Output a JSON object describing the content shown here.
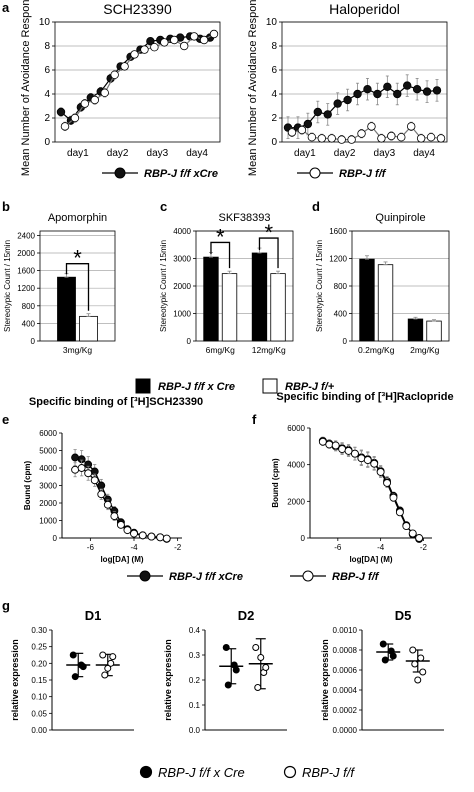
{
  "panel_letters": {
    "a": "a",
    "b": "b",
    "c": "c",
    "d": "d",
    "e": "e",
    "f": "f",
    "g": "g"
  },
  "legends": {
    "ab": [
      {
        "label": "RBP-J f/f xCre",
        "fill": "#111111"
      },
      {
        "label": "RBP-J f/f",
        "fill": "#ffffff"
      }
    ],
    "bcd": [
      {
        "label": "RBP-J f/f x Cre",
        "fill": "#000000"
      },
      {
        "label": "RBP-J f/+",
        "fill": "#ffffff"
      }
    ],
    "ef": [
      {
        "label": "RBP-J f/f xCre",
        "fill": "#111111"
      },
      {
        "label": "RBP-J f/f",
        "fill": "#ffffff"
      }
    ],
    "g": [
      {
        "label": "RBP-J f/f x Cre",
        "fill": "#000000"
      },
      {
        "label": "RBP-J f/f",
        "fill": "#ffffff"
      }
    ]
  },
  "chart_data": [
    {
      "id": "a1",
      "type": "line",
      "title": "SCH23390",
      "xlabel": "",
      "ylabel": "Mean Number of Avoidance Response",
      "ylim": [
        0,
        10
      ],
      "yticks": [
        0,
        2,
        4,
        6,
        8,
        10
      ],
      "x_tick_labels": [
        "day1",
        "day2",
        "day3",
        "day4"
      ],
      "grid": true,
      "x_index": [
        1,
        2,
        3,
        4,
        5,
        6,
        7,
        8,
        9,
        10,
        11,
        12,
        13,
        14,
        15,
        16
      ],
      "series": [
        {
          "name": "RBP-J f/f xCre",
          "marker": "filled",
          "values": [
            2.5,
            1.8,
            2.9,
            3.7,
            4.2,
            5.3,
            6.3,
            7.1,
            7.7,
            8.4,
            8.5,
            8.6,
            8.7,
            8.8,
            8.6,
            8.7
          ]
        },
        {
          "name": "RBP-J f/f",
          "marker": "open",
          "values": [
            1.3,
            2.0,
            3.2,
            3.5,
            4.1,
            5.6,
            6.3,
            7.3,
            7.7,
            7.9,
            8.3,
            8.5,
            8.0,
            8.8,
            8.5,
            9.0
          ]
        }
      ]
    },
    {
      "id": "a2",
      "type": "line",
      "title": "Haloperidol",
      "xlabel": "",
      "ylabel": "Mean Number of Avoidance Response",
      "ylim": [
        0,
        10
      ],
      "yticks": [
        0,
        2,
        4,
        6,
        8,
        10
      ],
      "x_tick_labels": [
        "day1",
        "day2",
        "day3",
        "day4"
      ],
      "grid": true,
      "x_index": [
        1,
        2,
        3,
        4,
        5,
        6,
        7,
        8,
        9,
        10,
        11,
        12,
        13,
        14,
        15,
        16
      ],
      "series": [
        {
          "name": "RBP-J f/f xCre",
          "marker": "filled",
          "values": [
            1.2,
            1.2,
            1.5,
            2.5,
            2.3,
            3.2,
            3.5,
            4.0,
            4.4,
            4.0,
            4.6,
            4.0,
            4.7,
            4.4,
            4.2,
            4.3
          ]
        },
        {
          "name": "RBP-J f/f",
          "marker": "open",
          "values": [
            0.8,
            1.0,
            0.4,
            0.3,
            0.3,
            0.2,
            0.2,
            0.7,
            1.3,
            0.3,
            0.5,
            0.4,
            1.3,
            0.3,
            0.4,
            0.3
          ]
        }
      ]
    },
    {
      "id": "b",
      "type": "bar",
      "title": "Apomorphin",
      "ylabel": "Stereotypic Count / 15min",
      "ylim": [
        0,
        2500
      ],
      "yticks": [
        0,
        400,
        800,
        1200,
        1600,
        2000,
        2400
      ],
      "categories": [
        "3mg/Kg"
      ],
      "series": [
        {
          "name": "RBP-J f/f x Cre",
          "values": [
            1450
          ],
          "err": [
            80
          ]
        },
        {
          "name": "RBP-J f/+",
          "values": [
            560
          ],
          "err": [
            60
          ]
        }
      ],
      "significance": [
        {
          "category": 0,
          "label": "*"
        }
      ]
    },
    {
      "id": "c",
      "type": "bar",
      "title": "SKF38393",
      "ylabel": "Stereotypic Count / 15min",
      "ylim": [
        0,
        4000
      ],
      "yticks": [
        0,
        1000,
        2000,
        3000,
        4000
      ],
      "categories": [
        "6mg/Kg",
        "12mg/Kg"
      ],
      "series": [
        {
          "name": "RBP-J f/f x Cre",
          "values": [
            3050,
            3200
          ],
          "err": [
            170,
            180
          ]
        },
        {
          "name": "RBP-J f/+",
          "values": [
            2450,
            2450
          ],
          "err": [
            90,
            90
          ]
        }
      ],
      "significance": [
        {
          "category": 0,
          "label": "*"
        },
        {
          "category": 1,
          "label": "*"
        }
      ]
    },
    {
      "id": "d",
      "type": "bar",
      "title": "Quinpirole",
      "ylabel": "Stereotypic Count / 15min",
      "ylim": [
        0,
        1600
      ],
      "yticks": [
        0,
        400,
        800,
        1200,
        1600
      ],
      "categories": [
        "0.2mg/Kg",
        "2mg/Kg"
      ],
      "series": [
        {
          "name": "RBP-J f/f x Cre",
          "values": [
            1190,
            320
          ],
          "err": [
            50,
            25
          ]
        },
        {
          "name": "RBP-J f/+",
          "values": [
            1110,
            290
          ],
          "err": [
            40,
            20
          ]
        }
      ]
    },
    {
      "id": "e",
      "type": "line",
      "title": "Specific binding of [³H]SCH23390",
      "xlabel": "log[DA] (M)",
      "ylabel": "Bound (cpm)",
      "xlim": [
        -7.3,
        -1.8
      ],
      "xticks": [
        -6,
        -4,
        -2
      ],
      "ylim": [
        0,
        6000
      ],
      "yticks": [
        0,
        1000,
        2000,
        3000,
        4000,
        5000,
        6000
      ],
      "series": [
        {
          "name": "RBP-J f/f xCre",
          "marker": "filled",
          "x": [
            -6.7,
            -6.4,
            -6.1,
            -5.8,
            -5.5,
            -5.2,
            -4.9,
            -4.6,
            -4.3,
            -4.0,
            -3.6,
            -3.2,
            -2.8,
            -2.5
          ],
          "y": [
            4600,
            4500,
            4200,
            3800,
            3000,
            2200,
            1550,
            900,
            500,
            300,
            150,
            80,
            40,
            -50
          ],
          "err": [
            450,
            500,
            450,
            400,
            350,
            300,
            250,
            150,
            100,
            80,
            50,
            40,
            30,
            30
          ]
        },
        {
          "name": "RBP-J f/f",
          "marker": "open",
          "x": [
            -6.7,
            -6.4,
            -6.1,
            -5.8,
            -5.5,
            -5.2,
            -4.9,
            -4.6,
            -4.3,
            -4.0,
            -3.6,
            -3.2,
            -2.8,
            -2.5
          ],
          "y": [
            3900,
            4000,
            3700,
            3300,
            2500,
            1900,
            1250,
            750,
            450,
            250,
            150,
            80,
            40,
            -30
          ],
          "err": [
            400,
            450,
            400,
            350,
            300,
            280,
            250,
            150,
            100,
            80,
            50,
            40,
            30,
            30
          ]
        }
      ]
    },
    {
      "id": "f",
      "type": "line",
      "title": "Specific binding of [³H]Raclopride",
      "xlabel": "log[DA] (M)",
      "ylabel": "Bound (cpm)",
      "xlim": [
        -7.3,
        -1.6
      ],
      "xticks": [
        -6,
        -4,
        -2
      ],
      "ylim": [
        0,
        6000
      ],
      "yticks": [
        0,
        2000,
        4000,
        6000
      ],
      "series": [
        {
          "name": "RBP-J f/f xCre",
          "marker": "filled",
          "x": [
            -6.7,
            -6.4,
            -6.1,
            -5.8,
            -5.5,
            -5.2,
            -4.9,
            -4.6,
            -4.3,
            -4.0,
            -3.7,
            -3.4,
            -3.1,
            -2.8,
            -2.5,
            -2.2
          ],
          "y": [
            5300,
            5150,
            5000,
            4900,
            4800,
            4600,
            4400,
            4300,
            4100,
            3650,
            3100,
            2300,
            1500,
            700,
            200,
            -50
          ],
          "err": [
            200,
            200,
            250,
            300,
            300,
            350,
            400,
            400,
            350,
            300,
            250,
            200,
            150,
            100,
            50,
            50
          ]
        },
        {
          "name": "RBP-J f/f",
          "marker": "open",
          "x": [
            -6.7,
            -6.4,
            -6.1,
            -5.8,
            -5.5,
            -5.2,
            -4.9,
            -4.6,
            -4.3,
            -4.0,
            -3.7,
            -3.4,
            -3.1,
            -2.8,
            -2.5,
            -2.2
          ],
          "y": [
            5250,
            5100,
            5050,
            4850,
            4750,
            4600,
            4350,
            4250,
            4050,
            3600,
            3000,
            2200,
            1400,
            650,
            250,
            0
          ],
          "err": [
            200,
            200,
            250,
            300,
            300,
            350,
            400,
            400,
            350,
            300,
            250,
            200,
            150,
            100,
            50,
            50
          ]
        }
      ]
    },
    {
      "id": "g1",
      "type": "scatter",
      "title": "D1",
      "ylabel": "relative expression",
      "ylim": [
        0,
        0.3
      ],
      "yticks": [
        0.0,
        0.05,
        0.1,
        0.15,
        0.2,
        0.25,
        0.3
      ],
      "tick_decimals": 2,
      "groups": [
        {
          "name": "RBP-J f/f x Cre",
          "marker": "filled",
          "points": [
            0.225,
            0.195,
            0.16,
            0.19
          ],
          "mean": 0.195,
          "sd": 0.035
        },
        {
          "name": "RBP-J f/f",
          "marker": "open",
          "points": [
            0.225,
            0.2,
            0.165,
            0.22,
            0.185
          ],
          "mean": 0.195,
          "sd": 0.032
        }
      ]
    },
    {
      "id": "g2",
      "type": "scatter",
      "title": "D2",
      "ylabel": "relative expression",
      "ylim": [
        0,
        0.4
      ],
      "yticks": [
        0.0,
        0.1,
        0.2,
        0.3,
        0.4
      ],
      "tick_decimals": 1,
      "groups": [
        {
          "name": "RBP-J f/f x Cre",
          "marker": "filled",
          "points": [
            0.33,
            0.26,
            0.18,
            0.24
          ],
          "mean": 0.255,
          "sd": 0.07
        },
        {
          "name": "RBP-J f/f",
          "marker": "open",
          "points": [
            0.33,
            0.23,
            0.17,
            0.25,
            0.29
          ],
          "mean": 0.265,
          "sd": 0.1
        }
      ]
    },
    {
      "id": "g3",
      "type": "scatter",
      "title": "D5",
      "ylabel": "relative expression",
      "ylim": [
        0,
        0.001
      ],
      "yticks": [
        0.0,
        0.0002,
        0.0004,
        0.0006,
        0.0008,
        0.001
      ],
      "tick_decimals": 4,
      "groups": [
        {
          "name": "RBP-J f/f x Cre",
          "marker": "filled",
          "points": [
            0.00086,
            0.00079,
            0.0007,
            0.00074
          ],
          "mean": 0.00078,
          "sd": 8e-05
        },
        {
          "name": "RBP-J f/f",
          "marker": "open",
          "points": [
            0.0008,
            0.00072,
            0.00066,
            0.00058,
            0.0005
          ],
          "mean": 0.00069,
          "sd": 0.00011
        }
      ]
    }
  ]
}
